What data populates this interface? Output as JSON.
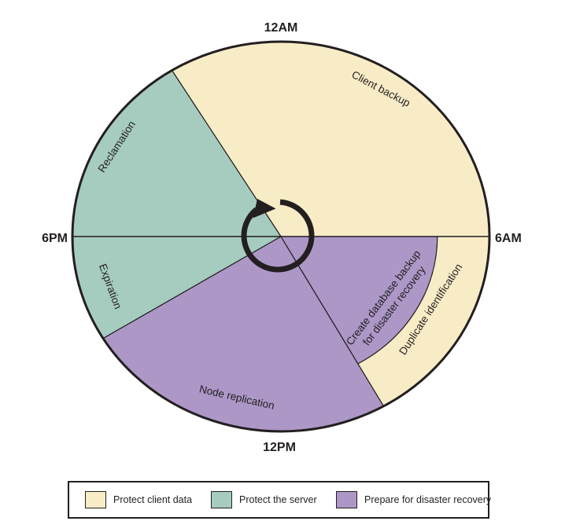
{
  "figure": {
    "description": "Daily schedule clock diagram of storage management operations",
    "background": "#ffffff"
  },
  "colors": {
    "protect_client_data": "#F8ECC7",
    "protect_the_server": "#A6CCC0",
    "prepare_for_disaster_recovery": "#AC97C7",
    "ink": "#231F20"
  },
  "clock": {
    "hour_labels": [
      {
        "text": "12AM"
      },
      {
        "text": "6AM"
      },
      {
        "text": "12PM"
      },
      {
        "text": "6PM"
      }
    ]
  },
  "segments": [
    {
      "id": "client-backup",
      "label": "Client backup",
      "color_key": "protect_client_data"
    },
    {
      "id": "reclamation",
      "label": "Reclamation",
      "color_key": "protect_the_server"
    },
    {
      "id": "expiration",
      "label": "Expiration",
      "color_key": "protect_the_server"
    },
    {
      "id": "node-replication",
      "label": "Node replication",
      "color_key": "prepare_for_disaster_recovery"
    },
    {
      "id": "create-database-backup",
      "label_lines": [
        "Create database backup",
        "for disaster recovery"
      ],
      "color_key": "prepare_for_disaster_recovery"
    },
    {
      "id": "duplicate-identification",
      "label": "Duplicate identification",
      "color_key": "protect_client_data"
    }
  ],
  "center_icon": {
    "name": "cycle-arrow-icon"
  },
  "legend": {
    "items": [
      {
        "label": "Protect client data",
        "color_key": "protect_client_data"
      },
      {
        "label": "Protect the server",
        "color_key": "protect_the_server"
      },
      {
        "label": "Prepare for disaster recovery",
        "color_key": "prepare_for_disaster_recovery"
      }
    ]
  }
}
